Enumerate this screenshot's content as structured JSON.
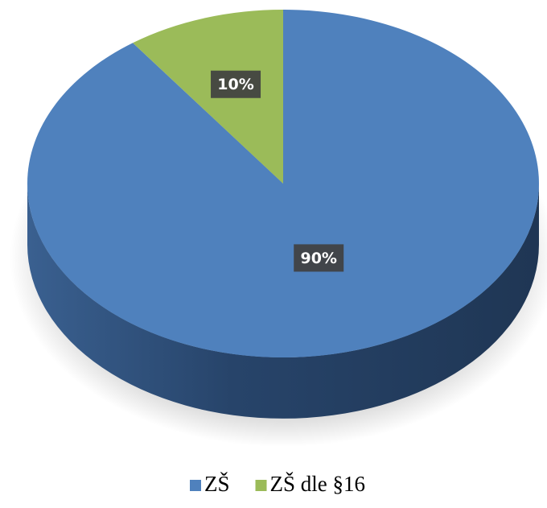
{
  "chart_data": {
    "type": "pie",
    "categories": [
      "ZŠ",
      "ZŠ dle §16"
    ],
    "values": [
      90,
      10
    ],
    "value_labels": [
      "90%",
      "10%"
    ],
    "colors": [
      "#4f81bd",
      "#9bbb59"
    ],
    "legend": "bottom"
  }
}
